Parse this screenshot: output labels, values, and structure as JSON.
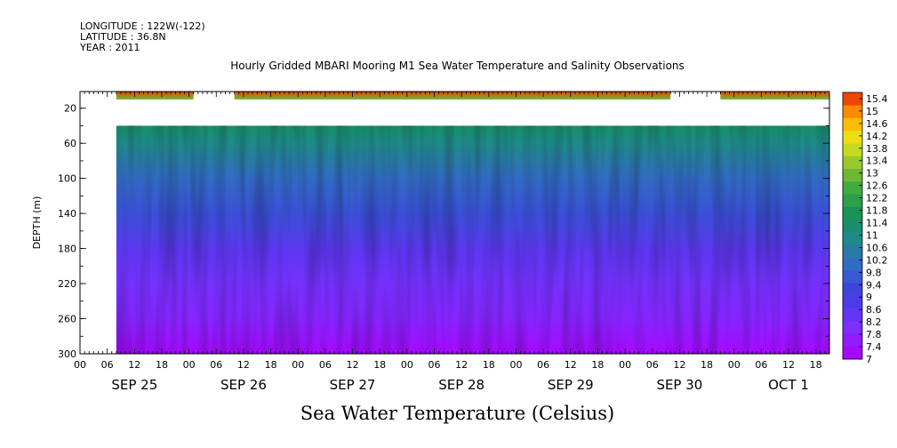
{
  "header": {
    "longitude": "LONGITUDE : 122W(-122)",
    "latitude": "LATITUDE : 36.8N",
    "year": "YEAR : 2011"
  },
  "chart_data": {
    "type": "heatmap",
    "title": "Hourly Gridded MBARI Mooring M1 Sea Water Temperature and Salinity Observations",
    "footer_title": "Sea Water Temperature (Celsius)",
    "ylabel": "DEPTH (m)",
    "y_ticks": [
      20,
      60,
      100,
      140,
      180,
      220,
      260,
      300
    ],
    "ylim": [
      300,
      1
    ],
    "y_reversed": true,
    "x_start": "2011-09-25T00:00",
    "x_end": "2011-10-01T21:00",
    "x_hour_labels": [
      "00",
      "06",
      "12",
      "18",
      "00",
      "06",
      "12",
      "18",
      "00",
      "06",
      "12",
      "18",
      "00",
      "06",
      "12",
      "18",
      "00",
      "06",
      "12",
      "18",
      "00",
      "06",
      "12",
      "18",
      "00",
      "06",
      "12",
      "18"
    ],
    "x_day_labels": [
      "SEP 25",
      "SEP 26",
      "SEP 27",
      "SEP 28",
      "SEP 29",
      "SEP 30",
      "OCT  1"
    ],
    "colorbar_labels": [
      "15.4",
      "15",
      "14.6",
      "14.2",
      "13.8",
      "13.4",
      "13",
      "12.6",
      "12.2",
      "11.8",
      "11.4",
      "11",
      "10.6",
      "10.2",
      "9.8",
      "9.4",
      "9",
      "8.6",
      "8.2",
      "7.8",
      "7.4",
      "7"
    ],
    "colorbar_range": [
      7,
      15.6
    ],
    "surface_layer": {
      "depth_range": [
        1,
        10
      ],
      "segments": [
        {
          "start": "2011-09-25T08:00",
          "end": "2011-09-26T01:00"
        },
        {
          "start": "2011-09-26T10:00",
          "end": "2011-09-30T10:00"
        },
        {
          "start": "2011-09-30T21:00",
          "end": "2011-10-01T21:00"
        }
      ],
      "temperature_range": [
        12.8,
        15.2
      ]
    },
    "water_column": {
      "depth_range": [
        40,
        300
      ],
      "start": "2011-09-25T08:00",
      "end": "2011-10-01T21:00",
      "temperature_profile": [
        {
          "depth": 40,
          "temp": 11.3
        },
        {
          "depth": 60,
          "temp": 10.8
        },
        {
          "depth": 100,
          "temp": 10.0
        },
        {
          "depth": 140,
          "temp": 9.4
        },
        {
          "depth": 180,
          "temp": 8.6
        },
        {
          "depth": 220,
          "temp": 8.1
        },
        {
          "depth": 260,
          "temp": 7.8
        },
        {
          "depth": 300,
          "temp": 7.2
        }
      ]
    }
  }
}
